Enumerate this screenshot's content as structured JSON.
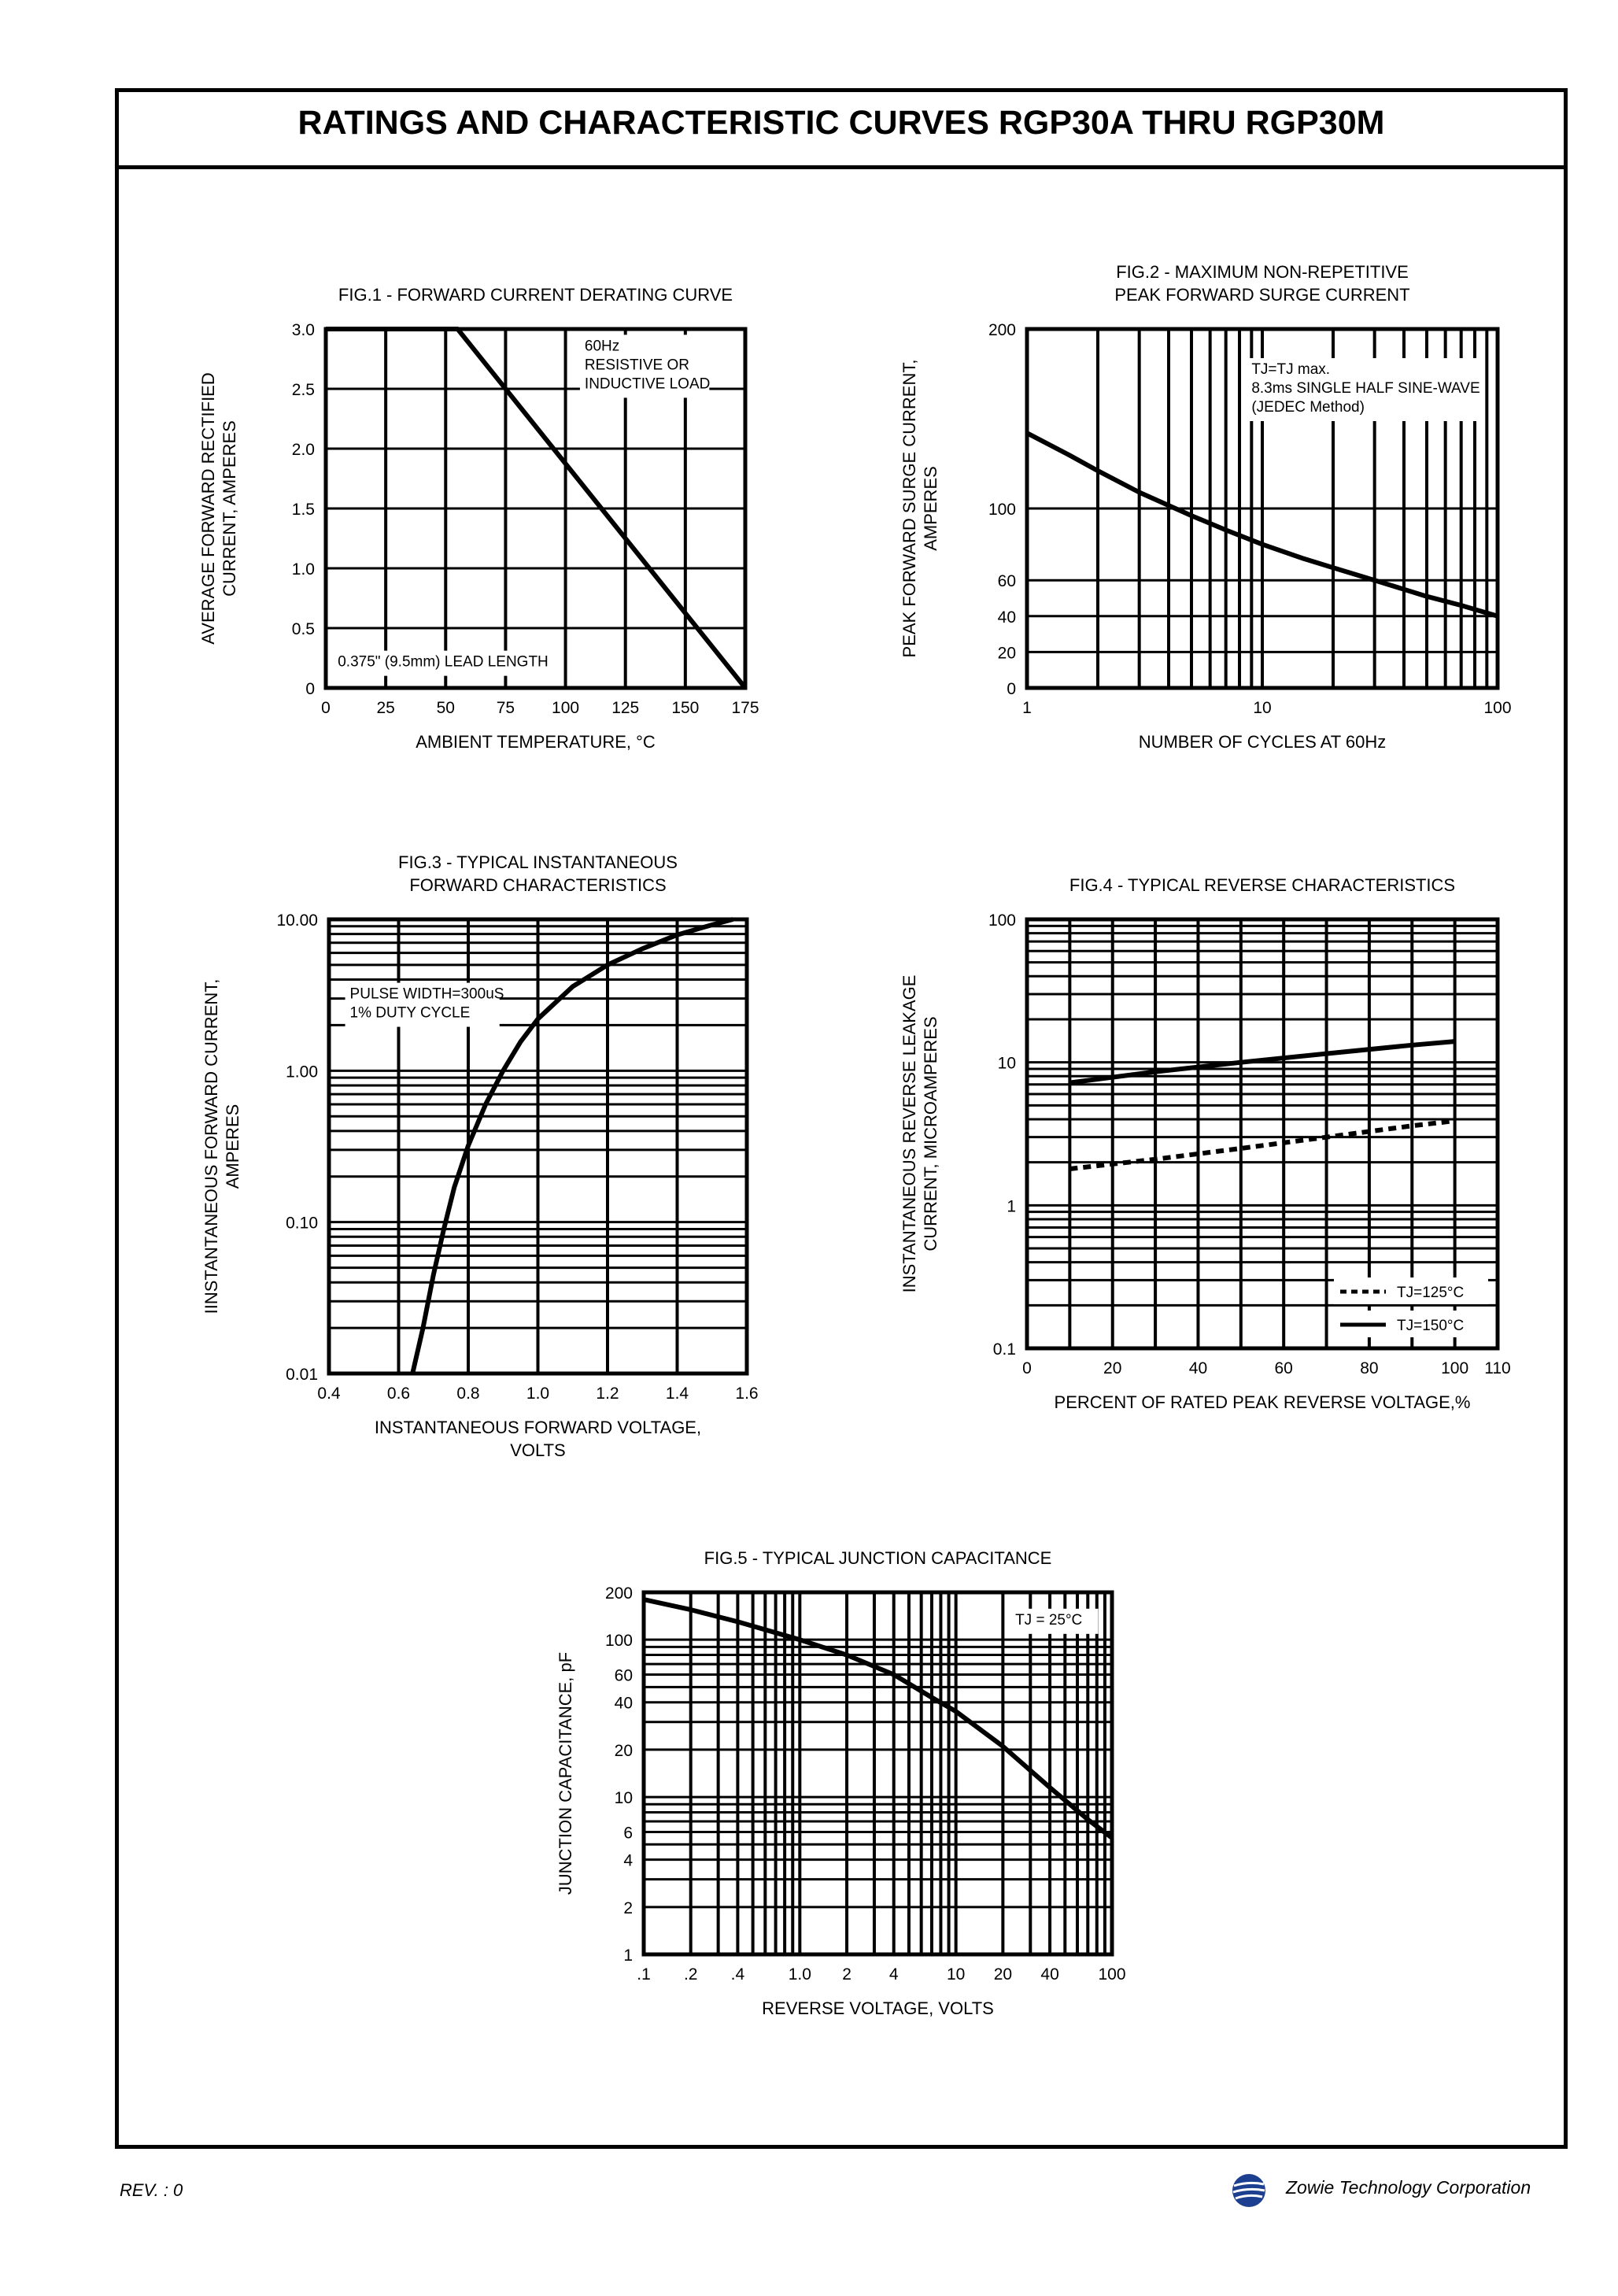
{
  "page": {
    "title": "RATINGS AND CHARACTERISTIC CURVES RGP30A THRU RGP30M",
    "rev": "REV. : 0",
    "company": "Zowie Technology Corporation",
    "logo_icon": "zowie-globe-logo"
  },
  "chart_data": [
    {
      "id": "fig1",
      "type": "line",
      "title": "FIG.1 - FORWARD CURRENT DERATING CURVE",
      "xlabel": "AMBIENT TEMPERATURE, °C",
      "ylabel": [
        "AVERAGE FORWARD RECTIFIED",
        "CURRENT, AMPERES"
      ],
      "xscale": "linear",
      "yscale": "linear",
      "xlim": [
        0,
        175
      ],
      "ylim": [
        0,
        3.0
      ],
      "xticks": [
        0,
        25,
        50,
        75,
        100,
        125,
        150,
        175
      ],
      "xtick_labels": [
        "0",
        "25",
        "50",
        "75",
        "100",
        "125",
        "150",
        "175"
      ],
      "yticks": [
        0,
        0.5,
        1.0,
        1.5,
        2.0,
        2.5,
        3.0
      ],
      "ytick_labels": [
        "0",
        "0.5",
        "1.0",
        "1.5",
        "2.0",
        "2.5",
        "3.0"
      ],
      "xgrid": [
        25,
        50,
        75,
        100,
        125,
        150
      ],
      "ygrid": [
        0.5,
        1.0,
        1.5,
        2.0,
        2.5
      ],
      "grid": true,
      "annotations": [
        {
          "lines": [
            "60Hz",
            "RESISTIVE OR",
            "INDUCTIVE LOAD"
          ],
          "at": [
            108,
            2.82
          ],
          "box": true
        },
        {
          "lines": [
            "0.375\" (9.5mm) LEAD LENGTH"
          ],
          "at": [
            5,
            0.18
          ],
          "box": true
        }
      ],
      "series": [
        {
          "style": "solid",
          "points": [
            [
              0,
              3.0
            ],
            [
              55,
              3.0
            ],
            [
              175,
              0
            ]
          ]
        }
      ]
    },
    {
      "id": "fig2",
      "type": "line",
      "title": [
        "FIG.2 - MAXIMUM NON-REPETITIVE",
        "PEAK FORWARD SURGE CURRENT"
      ],
      "xlabel": "NUMBER OF CYCLES AT 60Hz",
      "ylabel": [
        "PEAK FORWARD SURGE CURRENT,",
        "AMPERES"
      ],
      "xscale": "log",
      "yscale": "linear",
      "xlim": [
        1,
        100
      ],
      "ylim": [
        0,
        200
      ],
      "xticks": [
        1,
        10,
        100
      ],
      "xtick_labels": [
        "1",
        "10",
        "100"
      ],
      "yticks": [
        0,
        20,
        40,
        60,
        100,
        200
      ],
      "ytick_labels": [
        "0",
        "20",
        "40",
        "60",
        "100",
        "200"
      ],
      "xgrid": [
        2,
        3,
        4,
        5,
        6,
        7,
        8,
        9,
        10,
        20,
        30,
        40,
        50,
        60,
        70,
        80,
        90
      ],
      "ygrid": [
        20,
        40,
        60,
        100
      ],
      "grid": true,
      "annotations": [
        {
          "lines": [
            "TJ=TJ max.",
            "8.3ms SINGLE HALF SINE-WAVE",
            "(JEDEC Method)"
          ],
          "at": [
            9.0,
            175
          ],
          "box": true
        }
      ],
      "series": [
        {
          "style": "solid",
          "points": [
            [
              1,
              142
            ],
            [
              1.5,
              130
            ],
            [
              2,
              121
            ],
            [
              3,
              109
            ],
            [
              5,
              96
            ],
            [
              7,
              88
            ],
            [
              10,
              80
            ],
            [
              15,
              72
            ],
            [
              20,
              67
            ],
            [
              30,
              60
            ],
            [
              50,
              51
            ],
            [
              70,
              46
            ],
            [
              100,
              40
            ]
          ]
        }
      ]
    },
    {
      "id": "fig3",
      "type": "line",
      "title": [
        "FIG.3 - TYPICAL INSTANTANEOUS",
        "FORWARD CHARACTERISTICS"
      ],
      "xlabel": [
        "INSTANTANEOUS FORWARD VOLTAGE,",
        "VOLTS"
      ],
      "ylabel": [
        "IINSTANTANEOUS FORWARD CURRENT,",
        "AMPERES"
      ],
      "xscale": "linear",
      "yscale": "log",
      "xlim": [
        0.4,
        1.6
      ],
      "ylim": [
        0.01,
        10
      ],
      "xticks": [
        0.4,
        0.6,
        0.8,
        1.0,
        1.2,
        1.4,
        1.6
      ],
      "xtick_labels": [
        "0.4",
        "0.6",
        "0.8",
        "1.0",
        "1.2",
        "1.4",
        "1.6"
      ],
      "yticks": [
        0.01,
        0.1,
        1,
        10
      ],
      "ytick_labels": [
        "0.01",
        "0.10",
        "1.00",
        "10.00"
      ],
      "xgrid": [
        0.6,
        0.8,
        1.0,
        1.2,
        1.4
      ],
      "ygrid": [
        0.02,
        0.03,
        0.04,
        0.05,
        0.06,
        0.07,
        0.08,
        0.09,
        0.1,
        0.2,
        0.3,
        0.4,
        0.5,
        0.6,
        0.7,
        0.8,
        0.9,
        1,
        2,
        3,
        4,
        5,
        6,
        7,
        8,
        9
      ],
      "grid": true,
      "annotations": [
        {
          "lines": [
            "PULSE WIDTH=300uS",
            "1% DUTY CYCLE"
          ],
          "at": [
            0.46,
            3.0
          ],
          "box": true
        }
      ],
      "series": [
        {
          "style": "solid",
          "points": [
            [
              0.64,
              0.01
            ],
            [
              0.67,
              0.02
            ],
            [
              0.7,
              0.045
            ],
            [
              0.73,
              0.09
            ],
            [
              0.76,
              0.17
            ],
            [
              0.8,
              0.32
            ],
            [
              0.85,
              0.6
            ],
            [
              0.9,
              1.0
            ],
            [
              0.95,
              1.55
            ],
            [
              1.0,
              2.2
            ],
            [
              1.1,
              3.6
            ],
            [
              1.2,
              5.0
            ],
            [
              1.3,
              6.4
            ],
            [
              1.4,
              7.9
            ],
            [
              1.5,
              9.2
            ],
            [
              1.56,
              10.0
            ]
          ]
        }
      ]
    },
    {
      "id": "fig4",
      "type": "line",
      "title": "FIG.4 - TYPICAL REVERSE CHARACTERISTICS",
      "xlabel": "PERCENT OF RATED PEAK REVERSE VOLTAGE,%",
      "ylabel": [
        "INSTANTANEOUS REVERSE LEAKAGE",
        "CURRENT, MICROAMPERES"
      ],
      "xscale": "linear",
      "yscale": "log",
      "xlim": [
        0,
        110
      ],
      "ylim": [
        0.1,
        100
      ],
      "xticks": [
        0,
        20,
        40,
        60,
        80,
        100,
        110
      ],
      "xtick_labels": [
        "0",
        "20",
        "40",
        "60",
        "80",
        "100",
        "110"
      ],
      "yticks": [
        0.1,
        1,
        10,
        100
      ],
      "ytick_labels": [
        "0.1",
        "1",
        "10",
        "100"
      ],
      "xgrid": [
        10,
        20,
        30,
        40,
        50,
        60,
        70,
        80,
        90,
        100
      ],
      "ygrid": [
        0.2,
        0.3,
        0.4,
        0.5,
        0.6,
        0.7,
        0.8,
        0.9,
        1,
        2,
        3,
        4,
        5,
        6,
        7,
        8,
        9,
        10,
        20,
        30,
        40,
        50,
        60,
        70,
        80,
        90
      ],
      "grid": true,
      "series": [
        {
          "name": "TJ=125°C",
          "style": "dashed",
          "points": [
            [
              10,
              1.8
            ],
            [
              30,
              2.1
            ],
            [
              50,
              2.5
            ],
            [
              70,
              3.0
            ],
            [
              90,
              3.6
            ],
            [
              100,
              3.9
            ]
          ]
        },
        {
          "name": "TJ=150°C",
          "style": "solid",
          "points": [
            [
              10,
              7.2
            ],
            [
              30,
              8.6
            ],
            [
              50,
              10.0
            ],
            [
              70,
              11.5
            ],
            [
              90,
              13.2
            ],
            [
              100,
              14.0
            ]
          ]
        }
      ],
      "legend": "bottom-right"
    },
    {
      "id": "fig5",
      "type": "line",
      "title": "FIG.5 - TYPICAL JUNCTION CAPACITANCE",
      "xlabel": "REVERSE VOLTAGE, VOLTS",
      "ylabel": [
        "JUNCTION CAPACITANCE, pF"
      ],
      "xscale": "log",
      "yscale": "log",
      "xlim": [
        0.1,
        100
      ],
      "ylim": [
        1,
        200
      ],
      "xticks": [
        0.1,
        0.2,
        0.4,
        1,
        2,
        4,
        10,
        20,
        40,
        100
      ],
      "xtick_labels": [
        ".1",
        ".2",
        ".4",
        "1.0",
        "2",
        "4",
        "10",
        "20",
        "40",
        "100"
      ],
      "yticks": [
        1,
        2,
        4,
        6,
        10,
        20,
        40,
        60,
        100,
        200
      ],
      "ytick_labels": [
        "1",
        "2",
        "4",
        "6",
        "10",
        "20",
        "40",
        "60",
        "100",
        "200"
      ],
      "xgrid": [
        0.2,
        0.3,
        0.4,
        0.5,
        0.6,
        0.7,
        0.8,
        0.9,
        1,
        2,
        3,
        4,
        5,
        6,
        7,
        8,
        9,
        10,
        20,
        30,
        40,
        50,
        60,
        70,
        80,
        90
      ],
      "ygrid": [
        2,
        3,
        4,
        5,
        6,
        7,
        8,
        9,
        10,
        20,
        30,
        40,
        50,
        60,
        70,
        80,
        90,
        100
      ],
      "grid": true,
      "annotations": [
        {
          "lines": [
            "TJ = 25°C"
          ],
          "at": [
            24,
            125
          ],
          "box": true
        }
      ],
      "series": [
        {
          "style": "solid",
          "points": [
            [
              0.1,
              180
            ],
            [
              0.2,
              155
            ],
            [
              0.4,
              130
            ],
            [
              1,
              100
            ],
            [
              2,
              80
            ],
            [
              4,
              60
            ],
            [
              7,
              43
            ],
            [
              10,
              35
            ],
            [
              20,
              21
            ],
            [
              40,
              11.5
            ],
            [
              70,
              7.2
            ],
            [
              100,
              5.5
            ]
          ]
        }
      ]
    }
  ]
}
